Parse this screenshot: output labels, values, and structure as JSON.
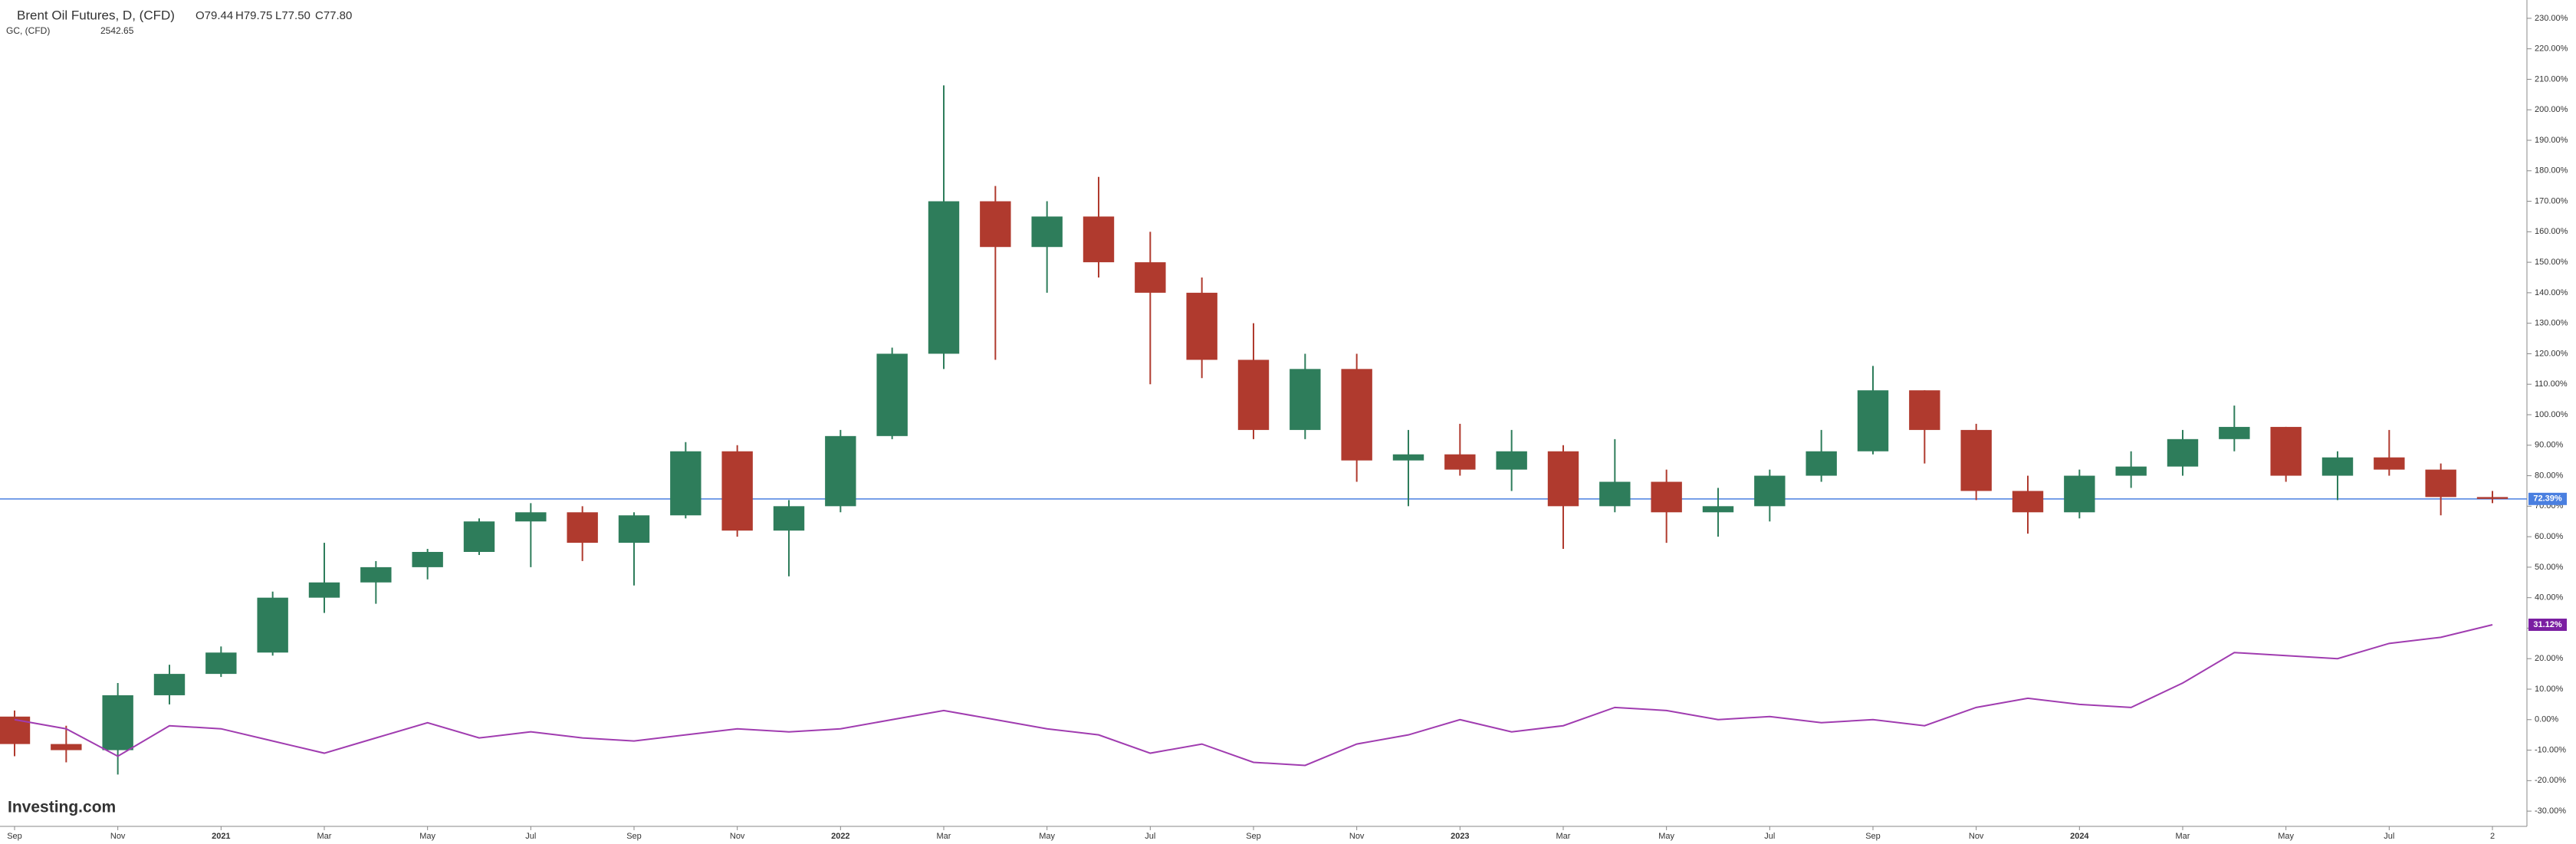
{
  "chart_data": {
    "type": "candlestick",
    "header": {
      "title": "Brent Oil Futures, D, (CFD)",
      "ohlc": [
        "O79.44",
        "H79.75",
        "L77.50",
        "C77.80"
      ],
      "compare_name": "GC, (CFD)",
      "compare_value": "2542.65"
    },
    "logo": "Investing.com",
    "x": [
      "2020-09",
      "2020-10",
      "2020-11",
      "2020-12",
      "2021-01",
      "2021-02",
      "2021-03",
      "2021-04",
      "2021-05",
      "2021-06",
      "2021-07",
      "2021-08",
      "2021-09",
      "2021-10",
      "2021-11",
      "2021-12",
      "2022-01",
      "2022-02",
      "2022-03",
      "2022-04",
      "2022-05",
      "2022-06",
      "2022-07",
      "2022-08",
      "2022-09",
      "2022-10",
      "2022-11",
      "2022-12",
      "2023-01",
      "2023-02",
      "2023-03",
      "2023-04",
      "2023-05",
      "2023-06",
      "2023-07",
      "2023-08",
      "2023-09",
      "2023-10",
      "2023-11",
      "2023-12",
      "2024-01",
      "2024-02",
      "2024-03",
      "2024-04",
      "2024-05",
      "2024-06",
      "2024-07",
      "2024-08",
      "2024-09"
    ],
    "open": [
      1,
      -8,
      -10,
      8,
      15,
      22,
      40,
      45,
      50,
      55,
      65,
      68,
      58,
      67,
      88,
      62,
      70,
      93,
      120,
      170,
      155,
      165,
      150,
      140,
      118,
      95,
      115,
      85,
      87,
      82,
      88,
      70,
      78,
      68,
      70,
      80,
      88,
      108,
      95,
      75,
      68,
      80,
      83,
      92,
      96,
      80,
      86,
      82,
      73
    ],
    "high": [
      3,
      -2,
      12,
      18,
      24,
      42,
      58,
      52,
      56,
      66,
      71,
      70,
      68,
      91,
      90,
      72,
      95,
      122,
      208,
      175,
      170,
      178,
      160,
      145,
      130,
      120,
      120,
      95,
      97,
      95,
      90,
      92,
      82,
      76,
      82,
      95,
      116,
      108,
      97,
      80,
      82,
      88,
      95,
      103,
      96,
      88,
      95,
      84,
      75
    ],
    "low": [
      -12,
      -14,
      -18,
      5,
      14,
      21,
      35,
      38,
      46,
      54,
      50,
      52,
      44,
      66,
      60,
      47,
      68,
      92,
      115,
      118,
      140,
      145,
      110,
      112,
      92,
      92,
      78,
      70,
      80,
      75,
      56,
      68,
      58,
      60,
      65,
      78,
      87,
      84,
      72,
      61,
      66,
      76,
      80,
      88,
      78,
      72,
      80,
      67,
      71
    ],
    "close": [
      -8,
      -10,
      8,
      15,
      22,
      40,
      45,
      50,
      55,
      65,
      68,
      58,
      67,
      88,
      62,
      70,
      93,
      120,
      170,
      155,
      165,
      150,
      140,
      118,
      95,
      115,
      85,
      87,
      82,
      88,
      70,
      78,
      68,
      70,
      80,
      88,
      108,
      95,
      75,
      68,
      80,
      83,
      92,
      96,
      80,
      86,
      82,
      73,
      72.39
    ],
    "up_color": "#2e7d5b",
    "down_color": "#b03a2e",
    "series": [
      {
        "name": "GC, (CFD)",
        "color": "#a03cb0",
        "values": [
          0,
          -3,
          -12,
          -2,
          -3,
          -7,
          -11,
          -6,
          -1,
          -6,
          -4,
          -6,
          -7,
          -5,
          -3,
          -4,
          -3,
          0,
          3,
          0,
          -3,
          -5,
          -11,
          -8,
          -14,
          -15,
          -8,
          -5,
          0,
          -4,
          -2,
          4,
          3,
          0,
          1,
          -1,
          0,
          -2,
          4,
          7,
          5,
          4,
          12,
          22,
          21,
          20,
          25,
          27,
          31.12
        ]
      }
    ],
    "price_line": {
      "value": 72.39,
      "label": "72.39%",
      "color": "#4a7fe0"
    },
    "compare_last": {
      "value": 31.12,
      "label": "31.12%",
      "color": "#7b1fa2"
    },
    "ylim": [
      -35,
      235
    ],
    "yticks": [
      {
        "value": -30,
        "label": "-30.00%"
      },
      {
        "value": -20,
        "label": "-20.00%"
      },
      {
        "value": -10,
        "label": "-10.00%"
      },
      {
        "value": 0,
        "label": "0.00%"
      },
      {
        "value": 10,
        "label": "10.00%"
      },
      {
        "value": 20,
        "label": "20.00%"
      },
      {
        "value": 30,
        "label": "30.00%"
      },
      {
        "value": 40,
        "label": "40.00%"
      },
      {
        "value": 50,
        "label": "50.00%"
      },
      {
        "value": 60,
        "label": "60.00%"
      },
      {
        "value": 70,
        "label": "70.00%"
      },
      {
        "value": 80,
        "label": "80.00%"
      },
      {
        "value": 90,
        "label": "90.00%"
      },
      {
        "value": 100,
        "label": "100.00%"
      },
      {
        "value": 110,
        "label": "110.00%"
      },
      {
        "value": 120,
        "label": "120.00%"
      },
      {
        "value": 130,
        "label": "130.00%"
      },
      {
        "value": 140,
        "label": "140.00%"
      },
      {
        "value": 150,
        "label": "150.00%"
      },
      {
        "value": 160,
        "label": "160.00%"
      },
      {
        "value": 170,
        "label": "170.00%"
      },
      {
        "value": 180,
        "label": "180.00%"
      },
      {
        "value": 190,
        "label": "190.00%"
      },
      {
        "value": 200,
        "label": "200.00%"
      },
      {
        "value": 210,
        "label": "210.00%"
      },
      {
        "value": 220,
        "label": "220.00%"
      },
      {
        "value": 230,
        "label": "230.00%"
      }
    ],
    "xticks": [
      {
        "value": "2020-09",
        "label": "Sep"
      },
      {
        "value": "2020-11",
        "label": "Nov"
      },
      {
        "value": "2021-01",
        "label": "2021"
      },
      {
        "value": "2021-03",
        "label": "Mar"
      },
      {
        "value": "2021-05",
        "label": "May"
      },
      {
        "value": "2021-07",
        "label": "Jul"
      },
      {
        "value": "2021-09",
        "label": "Sep"
      },
      {
        "value": "2021-11",
        "label": "Nov"
      },
      {
        "value": "2022-01",
        "label": "2022"
      },
      {
        "value": "2022-03",
        "label": "Mar"
      },
      {
        "value": "2022-05",
        "label": "May"
      },
      {
        "value": "2022-07",
        "label": "Jul"
      },
      {
        "value": "2022-09",
        "label": "Sep"
      },
      {
        "value": "2022-11",
        "label": "Nov"
      },
      {
        "value": "2023-01",
        "label": "2023"
      },
      {
        "value": "2023-03",
        "label": "Mar"
      },
      {
        "value": "2023-05",
        "label": "May"
      },
      {
        "value": "2023-07",
        "label": "Jul"
      },
      {
        "value": "2023-09",
        "label": "Sep"
      },
      {
        "value": "2023-11",
        "label": "Nov"
      },
      {
        "value": "2024-01",
        "label": "2024"
      },
      {
        "value": "2024-03",
        "label": "Mar"
      },
      {
        "value": "2024-05",
        "label": "May"
      },
      {
        "value": "2024-07",
        "label": "Jul"
      },
      {
        "value": "2024-09",
        "label": "2"
      }
    ]
  }
}
